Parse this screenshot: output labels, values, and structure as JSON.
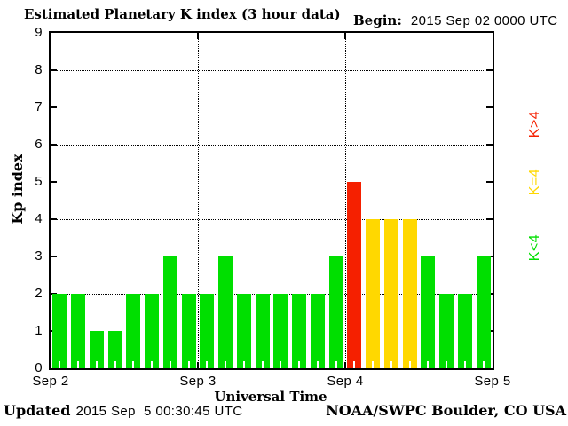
{
  "header": {
    "title": "Estimated Planetary K index (3 hour data)",
    "begin_label": "Begin:",
    "begin_value": "2015 Sep 02 0000 UTC"
  },
  "axes": {
    "ylabel": "Kp index",
    "xlabel": "Universal Time"
  },
  "legend": {
    "items": [
      {
        "label": "K>4",
        "color": "#f52000"
      },
      {
        "label": "K=4",
        "color": "#ffd800"
      },
      {
        "label": "K<4",
        "color": "#00df00"
      }
    ]
  },
  "footer": {
    "updated_label": "Updated",
    "updated_value": "2015 Sep  5 00:30:45 UTC",
    "source": "NOAA/SWPC Boulder, CO USA"
  },
  "chart_data": {
    "type": "bar",
    "title": "Estimated Planetary K index (3 hour data)",
    "begin": "2015 Sep 02 0000 UTC",
    "xlabel": "Universal Time",
    "ylabel": "Kp index",
    "ylim": [
      0,
      9
    ],
    "yticks": [
      0,
      1,
      2,
      3,
      4,
      5,
      6,
      7,
      8,
      9
    ],
    "grid_y": [
      2,
      4,
      6,
      8
    ],
    "grid_style": "dotted",
    "bin_hours": 3,
    "x_tick_labels": [
      "Sep 2",
      "Sep 3",
      "Sep 4",
      "Sep 5"
    ],
    "days": [
      {
        "date": "Sep 2",
        "kp": [
          2,
          2,
          1,
          1,
          2,
          2,
          3,
          2
        ]
      },
      {
        "date": "Sep 3",
        "kp": [
          2,
          3,
          2,
          2,
          2,
          2,
          2,
          3
        ]
      },
      {
        "date": "Sep 4",
        "kp": [
          5,
          4,
          4,
          4,
          3,
          2,
          2,
          3
        ]
      }
    ],
    "colors": {
      "k_below_4": "#00df00",
      "k_equal_4": "#ffd800",
      "k_above_4": "#f52000"
    },
    "legend_position": "right"
  }
}
